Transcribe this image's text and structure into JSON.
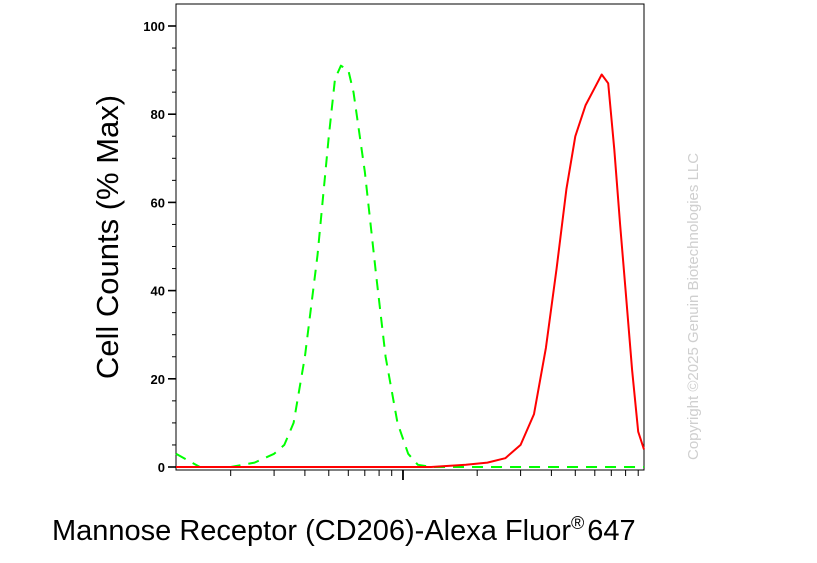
{
  "watermark": "Copyright ©2025 Genuin Biotechnologies LLC",
  "chart_data": {
    "type": "line",
    "xlabel": "Mannose Receptor (CD206)-Alexa Fluor",
    "xlabel_superscript": "®",
    "xlabel_suffix": "647",
    "ylabel": "Cell Counts (% Max)",
    "xscale": "log",
    "xlim": [
      0.12,
      9.5
    ],
    "ylim": [
      0,
      105
    ],
    "yticks": [
      0,
      20,
      40,
      60,
      80,
      100
    ],
    "ytick_labels": [
      "0",
      "20",
      "40",
      "60",
      "80",
      "100"
    ],
    "grid": false,
    "legend": "none",
    "series": [
      {
        "color": "#00ff00",
        "linestyle": "dashed",
        "x": [
          0.12,
          0.15,
          0.2,
          0.25,
          0.3,
          0.33,
          0.36,
          0.4,
          0.45,
          0.5,
          0.53,
          0.56,
          0.6,
          0.63,
          0.7,
          0.78,
          0.85,
          0.95,
          1.05,
          1.15,
          1.3,
          1.5,
          2,
          3,
          5,
          9.5
        ],
        "y": [
          3,
          0,
          0,
          1,
          3,
          5,
          10,
          25,
          48,
          75,
          88,
          91,
          90,
          85,
          67,
          43,
          25,
          10,
          3,
          0.5,
          0,
          0,
          0,
          0,
          0,
          0
        ]
      },
      {
        "color": "#ff0000",
        "linestyle": "solid",
        "x": [
          0.12,
          1.3,
          1.8,
          2.2,
          2.6,
          3,
          3.4,
          3.8,
          4.2,
          4.6,
          5,
          5.5,
          6,
          6.4,
          6.8,
          7.2,
          7.6,
          8,
          8.5,
          9,
          9.5
        ],
        "y": [
          0,
          0,
          0.5,
          1,
          2,
          5,
          12,
          27,
          45,
          63,
          75,
          82,
          86,
          89,
          87,
          72,
          55,
          40,
          22,
          8,
          4
        ]
      }
    ]
  }
}
